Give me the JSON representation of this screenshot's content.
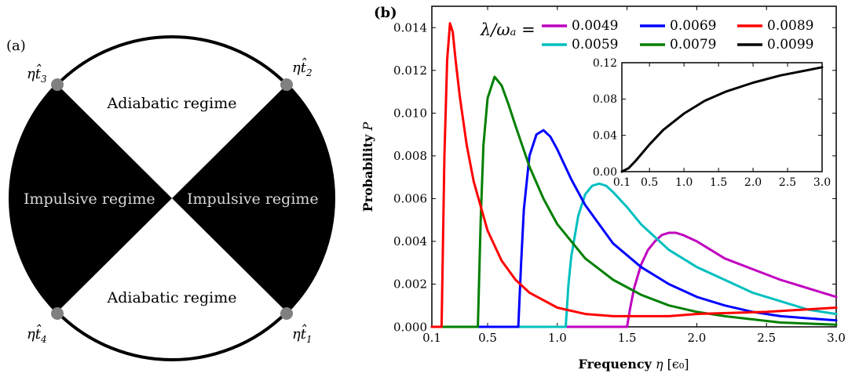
{
  "diagram": {
    "label": "(a)",
    "regions": {
      "top": "Adiabatic regime",
      "bottom": "Adiabatic regime",
      "left": "Impulsive regime",
      "right": "Impulsive regime"
    },
    "points": [
      {
        "id": "t3",
        "base": "η",
        "sub": "3",
        "pos": "upper-left"
      },
      {
        "id": "t2",
        "base": "η",
        "sub": "2",
        "pos": "upper-right"
      },
      {
        "id": "t4",
        "base": "η",
        "sub": "4",
        "pos": "lower-left"
      },
      {
        "id": "t1",
        "base": "η",
        "sub": "1",
        "pos": "lower-right"
      }
    ],
    "colors": {
      "fill": "#000000",
      "point": "#808080"
    }
  },
  "chart_data": [
    {
      "type": "line",
      "panel_label": "(b)",
      "xlabel_bold": "Frequency",
      "xlabel_symbol": "η",
      "xlabel_unit": "[ϵ₀]",
      "ylabel_bold": "Probability",
      "ylabel_symbol": "P",
      "legend_title": "λ/ωₐ =",
      "legend_position": "top",
      "xlim": [
        0.1,
        3.0
      ],
      "ylim": [
        0.0,
        0.015
      ],
      "xticks": [
        "0.1",
        "0.5",
        "1.0",
        "1.5",
        "2.0",
        "2.5",
        "3.0"
      ],
      "xtick_values": [
        0.1,
        0.5,
        1.0,
        1.5,
        2.0,
        2.5,
        3.0
      ],
      "yticks": [
        "0.000",
        "0.002",
        "0.004",
        "0.006",
        "0.008",
        "0.010",
        "0.012",
        "0.014"
      ],
      "ytick_values": [
        0,
        0.002,
        0.004,
        0.006,
        0.008,
        0.01,
        0.012,
        0.014
      ],
      "grid": false,
      "series": [
        {
          "name": "0.0049",
          "color": "#bf00bf",
          "x": [
            0.1,
            1.5,
            1.52,
            1.55,
            1.6,
            1.65,
            1.7,
            1.75,
            1.8,
            1.85,
            1.9,
            2.0,
            2.1,
            2.2,
            2.4,
            2.6,
            2.8,
            3.0
          ],
          "y": [
            0,
            0,
            0.0008,
            0.0018,
            0.0029,
            0.0036,
            0.004,
            0.0043,
            0.0044,
            0.0044,
            0.0043,
            0.004,
            0.0036,
            0.0032,
            0.0027,
            0.0022,
            0.0018,
            0.0014
          ]
        },
        {
          "name": "0.0059",
          "color": "#00bfbf",
          "x": [
            0.1,
            1.06,
            1.08,
            1.1,
            1.15,
            1.2,
            1.25,
            1.3,
            1.35,
            1.4,
            1.5,
            1.6,
            1.8,
            2.0,
            2.2,
            2.4,
            2.6,
            2.8,
            3.0
          ],
          "y": [
            0,
            0,
            0.002,
            0.0033,
            0.0052,
            0.0062,
            0.0066,
            0.0067,
            0.0066,
            0.0063,
            0.0056,
            0.0048,
            0.0036,
            0.0028,
            0.0022,
            0.0016,
            0.0012,
            0.0008,
            0.0006
          ]
        },
        {
          "name": "0.0069",
          "color": "#0000ff",
          "x": [
            0.1,
            0.72,
            0.74,
            0.76,
            0.8,
            0.85,
            0.9,
            0.95,
            1.0,
            1.1,
            1.2,
            1.4,
            1.6,
            1.8,
            2.0,
            2.2,
            2.4,
            2.6,
            2.8,
            3.0
          ],
          "y": [
            0,
            0,
            0.003,
            0.0055,
            0.008,
            0.009,
            0.0092,
            0.0089,
            0.0083,
            0.0069,
            0.0057,
            0.0039,
            0.0028,
            0.002,
            0.0014,
            0.001,
            0.0007,
            0.0005,
            0.0004,
            0.0003
          ]
        },
        {
          "name": "0.0079",
          "color": "#007f00",
          "x": [
            0.1,
            0.43,
            0.45,
            0.47,
            0.5,
            0.55,
            0.6,
            0.65,
            0.7,
            0.8,
            0.9,
            1.0,
            1.2,
            1.4,
            1.6,
            1.8,
            2.0,
            2.2,
            2.6,
            3.0
          ],
          "y": [
            0,
            0,
            0.005,
            0.0085,
            0.0107,
            0.0117,
            0.0113,
            0.0104,
            0.0094,
            0.0075,
            0.006,
            0.0048,
            0.0032,
            0.0022,
            0.0015,
            0.001,
            0.0007,
            0.0005,
            0.0002,
            0.0001
          ]
        },
        {
          "name": "0.0089",
          "color": "#ff0000",
          "x": [
            0.1,
            0.17,
            0.19,
            0.21,
            0.23,
            0.25,
            0.27,
            0.3,
            0.35,
            0.4,
            0.5,
            0.6,
            0.7,
            0.8,
            1.0,
            1.2,
            1.4,
            1.6,
            1.8,
            2.0,
            2.5,
            3.0
          ],
          "y": [
            0,
            0,
            0.008,
            0.0125,
            0.0142,
            0.0138,
            0.0125,
            0.0108,
            0.0085,
            0.0068,
            0.0045,
            0.0031,
            0.0022,
            0.0016,
            0.0009,
            0.0006,
            0.0005,
            0.0005,
            0.0005,
            0.0006,
            0.0007,
            0.0009
          ]
        },
        {
          "name": "0.0099",
          "color": "#000000",
          "x": [],
          "y": []
        }
      ]
    },
    {
      "type": "line",
      "inset": true,
      "xlim": [
        0.1,
        3.0
      ],
      "ylim": [
        0.0,
        0.12
      ],
      "xticks": [
        "0.1",
        "0.5",
        "1.0",
        "1.5",
        "2.0",
        "2.5",
        "3.0"
      ],
      "xtick_values": [
        0.1,
        0.5,
        1.0,
        1.5,
        2.0,
        2.5,
        3.0
      ],
      "yticks": [
        "0.00",
        "0.04",
        "0.08",
        "0.12"
      ],
      "ytick_values": [
        0,
        0.04,
        0.08,
        0.12
      ],
      "series": [
        {
          "color": "#000000",
          "x": [
            0.1,
            0.2,
            0.3,
            0.5,
            0.7,
            1.0,
            1.3,
            1.6,
            2.0,
            2.4,
            2.8,
            3.0
          ],
          "y": [
            0.0,
            0.004,
            0.012,
            0.03,
            0.046,
            0.064,
            0.078,
            0.088,
            0.098,
            0.106,
            0.112,
            0.115
          ]
        }
      ]
    }
  ]
}
